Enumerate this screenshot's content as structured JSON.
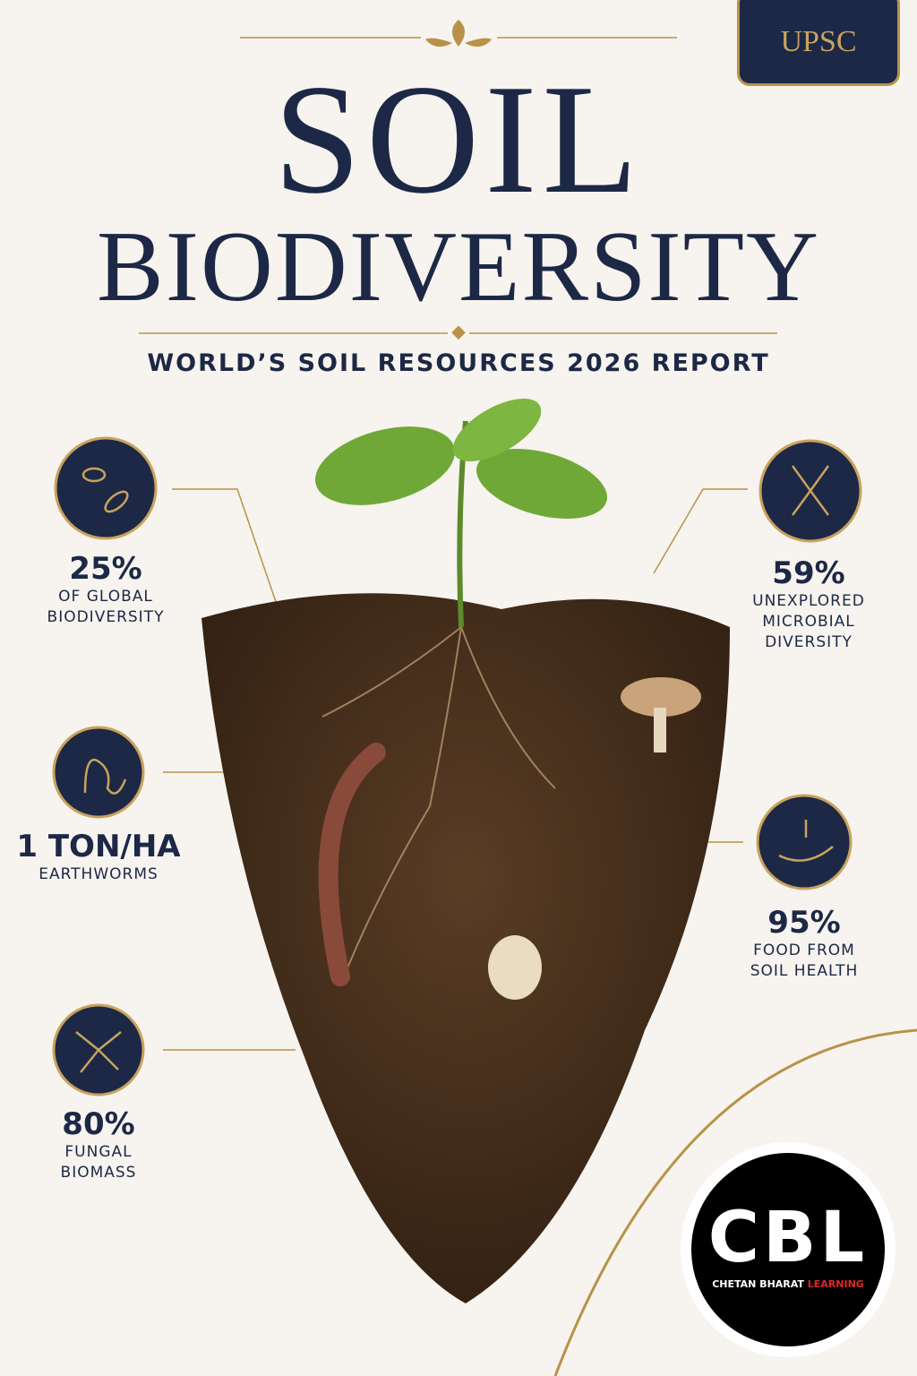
{
  "badge": "UPSC",
  "title": {
    "line1": "SOIL",
    "line2": "BIODIVERSITY"
  },
  "subtitle": "WORLD’S SOIL RESOURCES 2026 REPORT",
  "stats": [
    {
      "value": "25%",
      "label": [
        "OF GLOBAL",
        "BIODIVERSITY"
      ]
    },
    {
      "value": "1 TON/HA",
      "label": [
        "EARTHWORMS"
      ]
    },
    {
      "value": "80%",
      "label": [
        "FUNGAL",
        "BIOMASS"
      ]
    },
    {
      "value": "59%",
      "label": [
        "UNEXPLORED",
        "MICROBIAL",
        "DIVERSITY"
      ]
    },
    {
      "value": "95%",
      "label": [
        "FOOD FROM",
        "SOIL HEALTH"
      ]
    }
  ],
  "logo": {
    "mark": "CBL",
    "name_a": "CHETAN BHARAT",
    "name_b": "LEARNING"
  }
}
